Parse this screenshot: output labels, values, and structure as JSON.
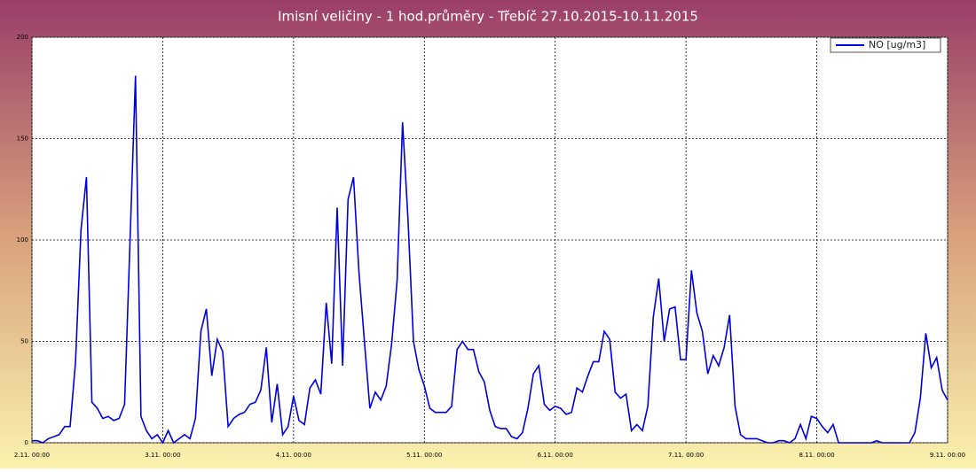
{
  "chart_data": {
    "type": "line",
    "title": "Imisní veličiny - 1 hod.průměry - Třebíč 27.10.2015-10.11.2015",
    "x": [
      0,
      1,
      2,
      3,
      4,
      5,
      6,
      7,
      8,
      9,
      10,
      11,
      12,
      13,
      14,
      15,
      16,
      17,
      18,
      19,
      20,
      21,
      22,
      23,
      24,
      25,
      26,
      27,
      28,
      29,
      30,
      31,
      32,
      33,
      34,
      35,
      36,
      37,
      38,
      39,
      40,
      41,
      42,
      43,
      44,
      45,
      46,
      47,
      48,
      49,
      50,
      51,
      52,
      53,
      54,
      55,
      56,
      57,
      58,
      59,
      60,
      61,
      62,
      63,
      64,
      65,
      66,
      67,
      68,
      69,
      70,
      71,
      72,
      73,
      74,
      75,
      76,
      77,
      78,
      79,
      80,
      81,
      82,
      83,
      84,
      85,
      86,
      87,
      88,
      89,
      90,
      91,
      92,
      93,
      94,
      95,
      96,
      97,
      98,
      99,
      100,
      101,
      102,
      103,
      104,
      105,
      106,
      107,
      108,
      109,
      110,
      111,
      112,
      113,
      114,
      115,
      116,
      117,
      118,
      119,
      120,
      121,
      122,
      123,
      124,
      125,
      126,
      127,
      128,
      129,
      130,
      131,
      132,
      133,
      134,
      135,
      136,
      137,
      138,
      139,
      140,
      141,
      142,
      143,
      144,
      145,
      146,
      147,
      148,
      149,
      150,
      151,
      152,
      153,
      154,
      155,
      156,
      157,
      158,
      159,
      160,
      161,
      162,
      163,
      164,
      165,
      166,
      167,
      168
    ],
    "series": [
      {
        "name": "NO [ug/m3]",
        "color": "#0000dd",
        "values": [
          1,
          1,
          0,
          2,
          3,
          4,
          8,
          8,
          40,
          105,
          131,
          20,
          17,
          12,
          13,
          11,
          12,
          19,
          100,
          181,
          13,
          6,
          2,
          4,
          0,
          6,
          0,
          2,
          4,
          2,
          12,
          55,
          66,
          33,
          51,
          45,
          8,
          12,
          14,
          15,
          19,
          20,
          26,
          47,
          10,
          29,
          4,
          8,
          23,
          11,
          9,
          27,
          31,
          24,
          69,
          39,
          116,
          38,
          120,
          131,
          84,
          50,
          17,
          25,
          21,
          28,
          49,
          80,
          158,
          110,
          50,
          36,
          28,
          17,
          15,
          15,
          15,
          18,
          46,
          50,
          46,
          46,
          35,
          30,
          16,
          8,
          7,
          7,
          3,
          2,
          5,
          17,
          34,
          38,
          19,
          16,
          18,
          17,
          14,
          15,
          27,
          25,
          33,
          40,
          40,
          55,
          51,
          25,
          22,
          24,
          6,
          9,
          6,
          18,
          62,
          81,
          50,
          66,
          67,
          41,
          41,
          85,
          64,
          55,
          34,
          43,
          38,
          47,
          63,
          18,
          4,
          2,
          2,
          2,
          1,
          0,
          0,
          1,
          1,
          0,
          2,
          9,
          2,
          13,
          12,
          8,
          5,
          9,
          0,
          0,
          0,
          0,
          0,
          0,
          0,
          1,
          0,
          0,
          0,
          0,
          0,
          0,
          5,
          22,
          54,
          37,
          42,
          26,
          21
        ]
      }
    ],
    "xlim": [
      0,
      168
    ],
    "xticks": [
      {
        "value": 0,
        "label": "2.11. 00:00"
      },
      {
        "value": 24,
        "label": "3.11. 00:00"
      },
      {
        "value": 48,
        "label": "4.11. 00:00"
      },
      {
        "value": 72,
        "label": "5.11. 00:00"
      },
      {
        "value": 96,
        "label": "6.11. 00:00"
      },
      {
        "value": 120,
        "label": "7.11. 00:00"
      },
      {
        "value": 144,
        "label": "8.11. 00:00"
      },
      {
        "value": 168,
        "label": "9.11. 00:00"
      }
    ],
    "ylim": [
      0,
      200
    ],
    "yticks": [
      0,
      50,
      100,
      150,
      200
    ],
    "grid": true,
    "legend": "upper right"
  }
}
